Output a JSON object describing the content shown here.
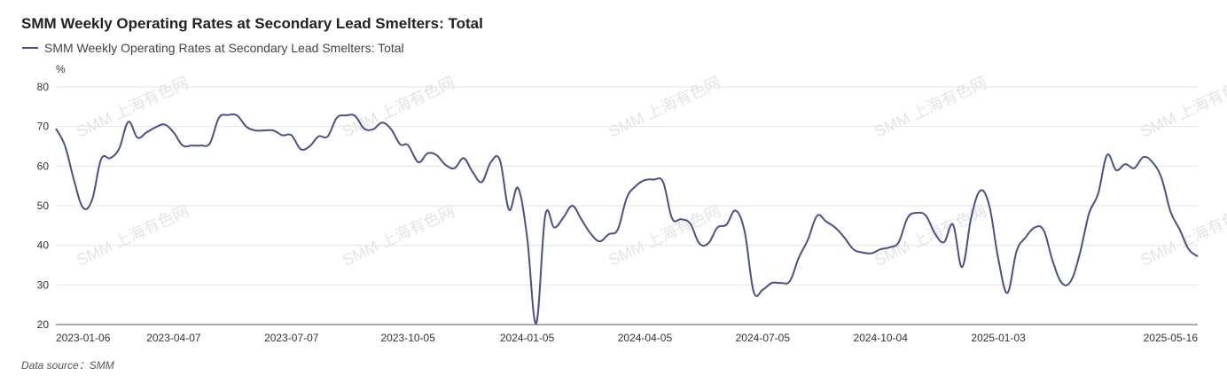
{
  "title": "SMM Weekly Operating Rates at Secondary Lead Smelters: Total",
  "footer": {
    "source": "Data source：SMM"
  },
  "watermark": "SMM 上海有色网",
  "chart_data": {
    "type": "line",
    "title": "SMM Weekly Operating Rates at Secondary Lead Smelters: Total",
    "ylabel": "%",
    "ylim": [
      20,
      80
    ],
    "yticks": [
      20,
      30,
      40,
      50,
      60,
      70,
      80
    ],
    "grid": true,
    "legend_position": "top-left",
    "x_ticks": [
      "2023-01-06",
      "2023-04-07",
      "2023-07-07",
      "2023-10-05",
      "2024-01-05",
      "2024-04-05",
      "2024-07-05",
      "2024-10-04",
      "2025-01-03",
      "2025-05-16"
    ],
    "series": [
      {
        "name": "SMM Weekly Operating Rates at Secondary Lead Smelters: Total",
        "color": "#4b4f8c",
        "points": [
          [
            "2023-01-06",
            69.5
          ],
          [
            "2023-01-13",
            65.2
          ],
          [
            "2023-01-20",
            56.5
          ],
          [
            "2023-01-27",
            49.5
          ],
          [
            "2023-02-03",
            51.5
          ],
          [
            "2023-02-10",
            61.8
          ],
          [
            "2023-02-17",
            62.0
          ],
          [
            "2023-02-24",
            64.5
          ],
          [
            "2023-03-03",
            71.2
          ],
          [
            "2023-03-10",
            67.2
          ],
          [
            "2023-03-17",
            68.5
          ],
          [
            "2023-03-24",
            69.8
          ],
          [
            "2023-03-31",
            70.5
          ],
          [
            "2023-04-07",
            68.5
          ],
          [
            "2023-04-14",
            65.2
          ],
          [
            "2023-04-21",
            65.2
          ],
          [
            "2023-04-28",
            65.2
          ],
          [
            "2023-05-05",
            65.8
          ],
          [
            "2023-05-12",
            72.2
          ],
          [
            "2023-05-19",
            72.9
          ],
          [
            "2023-05-26",
            72.8
          ],
          [
            "2023-06-02",
            70.0
          ],
          [
            "2023-06-09",
            69.0
          ],
          [
            "2023-06-16",
            69.0
          ],
          [
            "2023-06-23",
            69.0
          ],
          [
            "2023-06-30",
            67.8
          ],
          [
            "2023-07-07",
            67.8
          ],
          [
            "2023-07-14",
            64.3
          ],
          [
            "2023-07-21",
            65.0
          ],
          [
            "2023-07-28",
            67.5
          ],
          [
            "2023-08-04",
            67.5
          ],
          [
            "2023-08-11",
            72.2
          ],
          [
            "2023-08-18",
            72.8
          ],
          [
            "2023-08-25",
            72.7
          ],
          [
            "2023-09-01",
            69.5
          ],
          [
            "2023-09-08",
            69.3
          ],
          [
            "2023-09-15",
            71.0
          ],
          [
            "2023-09-22",
            69.3
          ],
          [
            "2023-09-29",
            65.5
          ],
          [
            "2023-10-05",
            65.3
          ],
          [
            "2023-10-13",
            61.0
          ],
          [
            "2023-10-20",
            63.2
          ],
          [
            "2023-10-27",
            62.8
          ],
          [
            "2023-11-03",
            60.3
          ],
          [
            "2023-11-10",
            59.5
          ],
          [
            "2023-11-17",
            62.0
          ],
          [
            "2023-11-24",
            58.5
          ],
          [
            "2023-12-01",
            56.0
          ],
          [
            "2023-12-08",
            61.0
          ],
          [
            "2023-12-15",
            61.5
          ],
          [
            "2023-12-22",
            49.0
          ],
          [
            "2023-12-29",
            54.5
          ],
          [
            "2024-01-05",
            42.0
          ],
          [
            "2024-01-12",
            20.3
          ],
          [
            "2024-01-19",
            47.5
          ],
          [
            "2024-01-26",
            44.5
          ],
          [
            "2024-02-02",
            47.0
          ],
          [
            "2024-02-09",
            50.0
          ],
          [
            "2024-02-16",
            46.5
          ],
          [
            "2024-02-23",
            43.0
          ],
          [
            "2024-03-01",
            41.0
          ],
          [
            "2024-03-08",
            42.8
          ],
          [
            "2024-03-15",
            44.0
          ],
          [
            "2024-03-22",
            52.0
          ],
          [
            "2024-03-29",
            55.0
          ],
          [
            "2024-04-05",
            56.5
          ],
          [
            "2024-04-12",
            56.6
          ],
          [
            "2024-04-19",
            56.0
          ],
          [
            "2024-04-26",
            46.8
          ],
          [
            "2024-05-03",
            46.6
          ],
          [
            "2024-05-10",
            45.5
          ],
          [
            "2024-05-17",
            40.5
          ],
          [
            "2024-05-24",
            40.5
          ],
          [
            "2024-05-31",
            44.5
          ],
          [
            "2024-06-07",
            45.2
          ],
          [
            "2024-06-14",
            48.8
          ],
          [
            "2024-06-21",
            43.5
          ],
          [
            "2024-06-28",
            28.3
          ],
          [
            "2024-07-05",
            28.8
          ],
          [
            "2024-07-12",
            30.5
          ],
          [
            "2024-07-19",
            30.5
          ],
          [
            "2024-07-26",
            31.0
          ],
          [
            "2024-08-02",
            37.0
          ],
          [
            "2024-08-09",
            41.5
          ],
          [
            "2024-08-16",
            47.5
          ],
          [
            "2024-08-23",
            46.0
          ],
          [
            "2024-08-30",
            44.5
          ],
          [
            "2024-09-06",
            42.0
          ],
          [
            "2024-09-13",
            39.0
          ],
          [
            "2024-09-20",
            38.2
          ],
          [
            "2024-09-27",
            38.0
          ],
          [
            "2024-10-04",
            39.0
          ],
          [
            "2024-10-11",
            39.5
          ],
          [
            "2024-10-18",
            40.8
          ],
          [
            "2024-10-25",
            47.0
          ],
          [
            "2024-11-01",
            48.2
          ],
          [
            "2024-11-08",
            47.5
          ],
          [
            "2024-11-15",
            43.0
          ],
          [
            "2024-11-22",
            40.8
          ],
          [
            "2024-11-29",
            45.2
          ],
          [
            "2024-12-06",
            34.5
          ],
          [
            "2024-12-13",
            47.0
          ],
          [
            "2024-12-20",
            53.8
          ],
          [
            "2024-12-27",
            50.0
          ],
          [
            "2025-01-03",
            36.5
          ],
          [
            "2025-01-10",
            28.0
          ],
          [
            "2025-01-17",
            38.5
          ],
          [
            "2025-01-24",
            42.0
          ],
          [
            "2025-01-31",
            44.5
          ],
          [
            "2025-02-07",
            43.8
          ],
          [
            "2025-02-14",
            36.0
          ],
          [
            "2025-02-21",
            30.5
          ],
          [
            "2025-02-28",
            31.0
          ],
          [
            "2025-03-07",
            38.0
          ],
          [
            "2025-03-14",
            48.0
          ],
          [
            "2025-03-21",
            53.0
          ],
          [
            "2025-03-28",
            62.8
          ],
          [
            "2025-04-04",
            59.0
          ],
          [
            "2025-04-11",
            60.5
          ],
          [
            "2025-04-18",
            59.5
          ],
          [
            "2025-04-25",
            62.3
          ],
          [
            "2025-05-02",
            61.0
          ],
          [
            "2025-05-09",
            57.0
          ],
          [
            "2025-05-16",
            48.5
          ],
          [
            "2025-05-23",
            44.0
          ],
          [
            "2025-05-30",
            39.0
          ],
          [
            "2025-06-06",
            37.2
          ]
        ]
      }
    ]
  }
}
